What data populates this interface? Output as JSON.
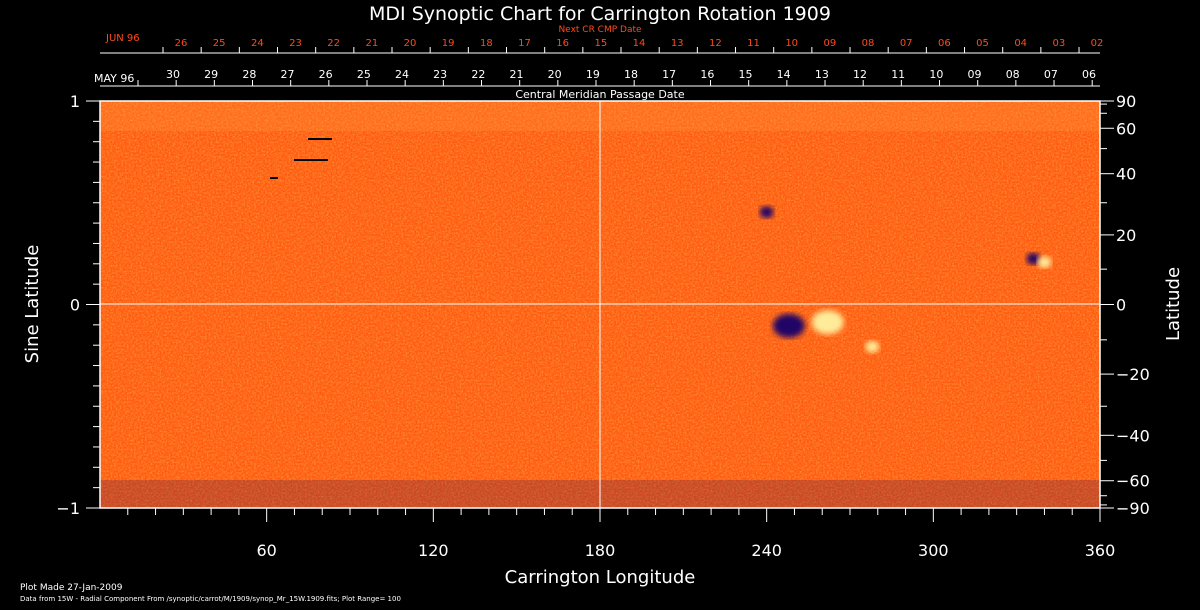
{
  "chart_data": {
    "type": "heatmap",
    "title": "MDI Synoptic Chart for Carrington Rotation 1909",
    "xlabel": "Carrington Longitude",
    "ylabel_left": "Sine Latitude",
    "ylabel_right": "Latitude",
    "xlim": [
      0,
      360
    ],
    "ylim": [
      -1,
      1
    ],
    "x_ticks": [
      60,
      120,
      180,
      240,
      300,
      360
    ],
    "y_ticks_left": [
      -1,
      0,
      1
    ],
    "y_ticks_right": [
      90,
      60,
      40,
      20,
      0,
      -20,
      -40,
      -60,
      -90
    ],
    "top_axis_title": "Central Meridian Passage Date",
    "top_month_label": "MAY 96",
    "top_dates": [
      "30",
      "29",
      "28",
      "27",
      "26",
      "25",
      "24",
      "23",
      "22",
      "21",
      "20",
      "19",
      "18",
      "17",
      "16",
      "15",
      "14",
      "13",
      "12",
      "11",
      "10",
      "09",
      "08",
      "07",
      "06"
    ],
    "next_title": "Next CR CMP Date",
    "next_month_label": "JUN 96",
    "next_dates": [
      "26",
      "25",
      "24",
      "23",
      "22",
      "21",
      "20",
      "19",
      "18",
      "17",
      "16",
      "15",
      "14",
      "13",
      "12",
      "11",
      "10",
      "09",
      "08",
      "07",
      "06",
      "05",
      "04",
      "03",
      "02"
    ],
    "active_regions": [
      {
        "lon": 248,
        "lat": -6,
        "polarity": "negative"
      },
      {
        "lon": 262,
        "lat": -5,
        "polarity": "positive"
      },
      {
        "lon": 278,
        "lat": -12,
        "polarity": "positive"
      },
      {
        "lon": 336,
        "lat": 13,
        "polarity": "negative"
      },
      {
        "lon": 340,
        "lat": 12,
        "polarity": "positive"
      },
      {
        "lon": 240,
        "lat": 27,
        "polarity": "negative"
      }
    ],
    "colors": {
      "background_field": "#ff5a10",
      "positive": "#fff3a0",
      "negative": "#12006a",
      "next_dates": "#ff4a1a"
    }
  },
  "footer": {
    "plot_made": "Plot Made 27-Jan-2009",
    "data_source": "Data from 15W - Radial Component From /synoptic/carrot/M/1909/synop_Mr_15W.1909.fits; Plot Range= 100"
  }
}
